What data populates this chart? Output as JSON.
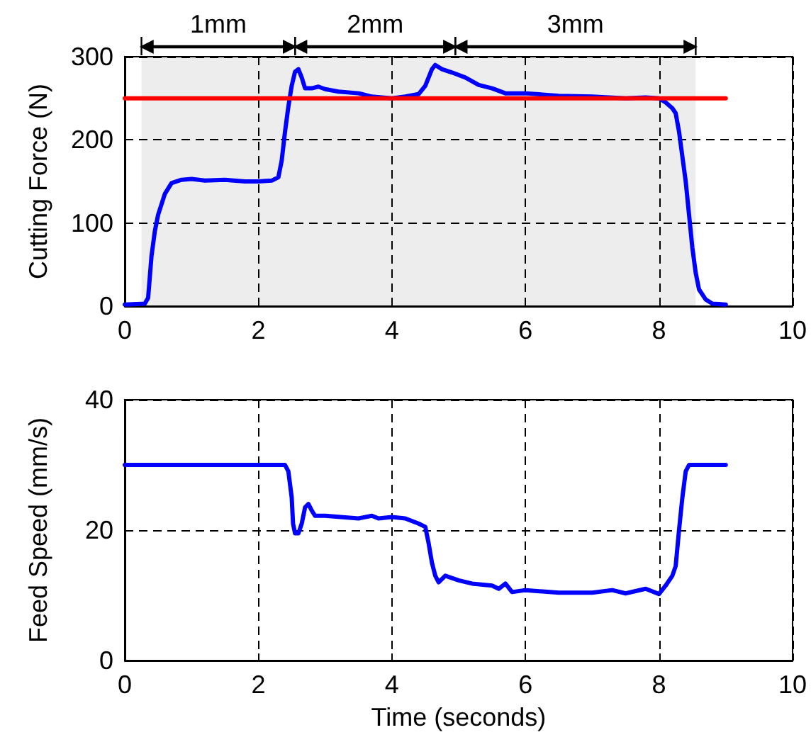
{
  "chart_data": [
    {
      "type": "line",
      "ylabel": "Cutting Force (N)",
      "xlim": [
        0,
        10
      ],
      "xticks": [
        0,
        2,
        4,
        6,
        8,
        10
      ],
      "ylim": [
        0,
        300
      ],
      "yticks": [
        0,
        100,
        200,
        300
      ],
      "grid": true,
      "marker": "none",
      "line_style": "solid",
      "bands": [
        {
          "axis": "x",
          "from": 0.25,
          "to": 2.55,
          "label": "1mm"
        },
        {
          "axis": "x",
          "from": 2.55,
          "to": 4.95,
          "label": "2mm"
        },
        {
          "axis": "x",
          "from": 4.95,
          "to": 8.55,
          "label": "3mm"
        }
      ],
      "series": [
        {
          "color": "#0000ff",
          "x": [
            0,
            0.3,
            0.35,
            0.4,
            0.45,
            0.5,
            0.6,
            0.7,
            0.85,
            1.0,
            1.2,
            1.5,
            1.8,
            2.0,
            2.2,
            2.3,
            2.35,
            2.4,
            2.45,
            2.5,
            2.55,
            2.6,
            2.65,
            2.7,
            2.8,
            2.9,
            3.0,
            3.2,
            3.5,
            3.7,
            4.0,
            4.2,
            4.4,
            4.5,
            4.6,
            4.65,
            4.75,
            4.9,
            5.1,
            5.3,
            5.5,
            5.7,
            6.0,
            6.5,
            7.0,
            7.5,
            7.8,
            8.0,
            8.1,
            8.2,
            8.25,
            8.3,
            8.35,
            8.4,
            8.45,
            8.5,
            8.55,
            8.6,
            8.7,
            8.8,
            9.0
          ],
          "values": [
            2,
            3,
            10,
            60,
            90,
            110,
            135,
            148,
            152,
            153,
            151,
            152,
            150,
            150,
            151,
            155,
            175,
            210,
            240,
            265,
            282,
            285,
            275,
            262,
            262,
            264,
            261,
            258,
            256,
            252,
            250,
            252,
            255,
            265,
            285,
            290,
            285,
            281,
            275,
            266,
            262,
            256,
            256,
            253,
            252,
            250,
            251,
            250,
            245,
            238,
            232,
            210,
            180,
            150,
            110,
            70,
            40,
            20,
            8,
            3,
            2
          ]
        },
        {
          "color": "#ff0000",
          "x": [
            0,
            9
          ],
          "values": [
            250,
            250
          ]
        }
      ]
    },
    {
      "type": "line",
      "xlabel": "Time (seconds)",
      "ylabel": "Feed Speed (mm/s)",
      "xlim": [
        0,
        10
      ],
      "xticks": [
        0,
        2,
        4,
        6,
        8,
        10
      ],
      "ylim": [
        0,
        40
      ],
      "yticks": [
        0,
        20,
        40
      ],
      "grid": true,
      "marker": "none",
      "line_style": "solid",
      "series": [
        {
          "color": "#0000ff",
          "x": [
            0,
            2.4,
            2.45,
            2.5,
            2.52,
            2.55,
            2.6,
            2.65,
            2.7,
            2.75,
            2.8,
            2.85,
            3.0,
            3.5,
            3.7,
            3.8,
            4.0,
            4.2,
            4.4,
            4.5,
            4.55,
            4.6,
            4.65,
            4.7,
            4.8,
            5.0,
            5.2,
            5.5,
            5.6,
            5.7,
            5.8,
            6.0,
            6.5,
            7.0,
            7.3,
            7.5,
            7.8,
            8.0,
            8.1,
            8.2,
            8.25,
            8.3,
            8.35,
            8.4,
            8.45,
            9.0
          ],
          "values": [
            30,
            30,
            29,
            25,
            21,
            19.5,
            19.5,
            21,
            23.5,
            24,
            23,
            22.2,
            22.2,
            21.8,
            22.2,
            21.8,
            22,
            21.8,
            21,
            20.5,
            18,
            15,
            13,
            12,
            13,
            12.3,
            11.8,
            11.5,
            11,
            11.8,
            10.5,
            10.8,
            10.4,
            10.4,
            10.8,
            10.3,
            11,
            10.2,
            11.5,
            13,
            14.5,
            20,
            25,
            29,
            30,
            30
          ]
        }
      ]
    }
  ]
}
